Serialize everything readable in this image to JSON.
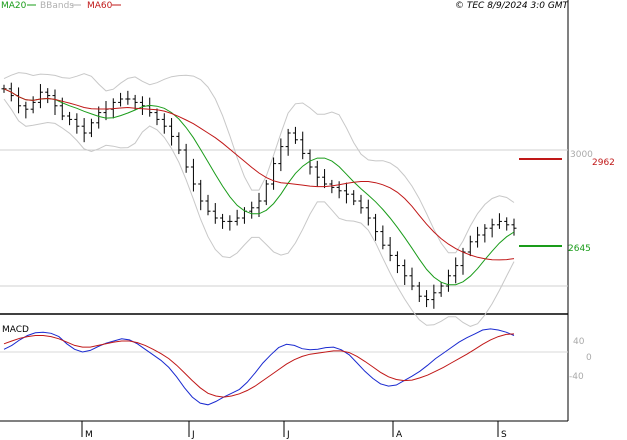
{
  "header": {
    "legend": [
      {
        "label": "MA20",
        "color": "#1a9c1a"
      },
      {
        "label": "BBands",
        "color": "#b0b0b0"
      },
      {
        "label": "MA60",
        "color": "#c01818"
      }
    ],
    "copyright": "© TEC 8/9/2024 3:0 GMT"
  },
  "chart_data": [
    {
      "type": "line",
      "panel": "price",
      "y_ticks": [
        {
          "label": "3000",
          "value": 3000
        }
      ],
      "ylim": [
        2500,
        3300
      ],
      "price_bars": [
        3180,
        3160,
        3130,
        3120,
        3140,
        3170,
        3160,
        3130,
        3100,
        3090,
        3070,
        3050,
        3080,
        3110,
        3120,
        3140,
        3150,
        3150,
        3140,
        3130,
        3110,
        3090,
        3070,
        3040,
        3000,
        2950,
        2900,
        2850,
        2820,
        2800,
        2790,
        2790,
        2800,
        2820,
        2830,
        2850,
        2900,
        2960,
        3010,
        3050,
        3030,
        2990,
        2950,
        2920,
        2900,
        2890,
        2880,
        2870,
        2850,
        2830,
        2800,
        2760,
        2720,
        2690,
        2660,
        2630,
        2600,
        2570,
        2560,
        2580,
        2600,
        2630,
        2660,
        2700,
        2730,
        2750,
        2770,
        2780,
        2790,
        2780,
        2770
      ],
      "levels": [
        {
          "label": "2962",
          "value": 2962,
          "color": "#c01818"
        },
        {
          "label": "2645",
          "value": 2645,
          "color": "#1a9c1a"
        }
      ],
      "series": [
        {
          "name": "MA20",
          "color": "#1a9c1a"
        },
        {
          "name": "BBands",
          "color": "#b0b0b0"
        },
        {
          "name": "MA60",
          "color": "#c01818"
        }
      ]
    },
    {
      "type": "line",
      "panel": "macd",
      "title": "MACD",
      "y_ticks": [
        {
          "label": "40",
          "value": 40
        },
        {
          "label": "0",
          "value": 0
        },
        {
          "label": "-40",
          "value": -40
        }
      ],
      "ylim": [
        -110,
        70
      ],
      "x_ticks": [
        "M",
        "J",
        "J",
        "A",
        "S"
      ],
      "series": [
        {
          "name": "MACD",
          "color": "#1a2ad0",
          "values": [
            5,
            12,
            22,
            30,
            35,
            36,
            34,
            28,
            15,
            5,
            0,
            3,
            10,
            16,
            20,
            24,
            22,
            15,
            5,
            -5,
            -15,
            -28,
            -45,
            -65,
            -82,
            -93,
            -96,
            -90,
            -82,
            -75,
            -68,
            -55,
            -38,
            -20,
            -5,
            8,
            14,
            12,
            6,
            4,
            5,
            8,
            9,
            4,
            -5,
            -20,
            -35,
            -48,
            -58,
            -62,
            -60,
            -52,
            -44,
            -35,
            -24,
            -12,
            -2,
            8,
            18,
            26,
            33,
            40,
            42,
            40,
            36,
            30
          ]
        },
        {
          "name": "Signal",
          "color": "#c01818",
          "values": [
            15,
            20,
            25,
            28,
            30,
            30,
            28,
            24,
            18,
            12,
            9,
            9,
            12,
            15,
            18,
            20,
            20,
            17,
            12,
            5,
            -3,
            -12,
            -24,
            -38,
            -52,
            -65,
            -75,
            -80,
            -82,
            -80,
            -76,
            -70,
            -62,
            -52,
            -42,
            -32,
            -22,
            -14,
            -8,
            -4,
            -2,
            0,
            2,
            2,
            -1,
            -8,
            -17,
            -27,
            -37,
            -45,
            -50,
            -52,
            -51,
            -47,
            -42,
            -35,
            -28,
            -20,
            -12,
            -4,
            5,
            14,
            22,
            28,
            32,
            33
          ]
        }
      ]
    }
  ]
}
